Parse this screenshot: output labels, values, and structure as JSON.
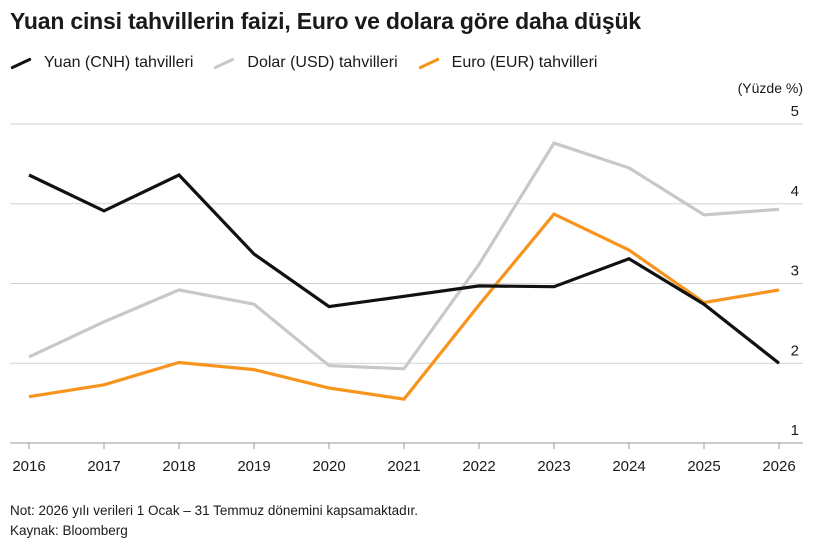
{
  "chart_data": {
    "type": "line",
    "title": "Yuan cinsi tahvillerin faizi, Euro ve dolara göre daha düşük",
    "y_unit_label": "(Yüzde %)",
    "x": [
      "2016",
      "2017",
      "2018",
      "2019",
      "2020",
      "2021",
      "2022",
      "2023",
      "2024",
      "2025",
      "2026"
    ],
    "ylim": [
      1,
      5
    ],
    "yticks": [
      "1",
      "2",
      "3",
      "4",
      "5"
    ],
    "grid": "horizontal",
    "legend_position": "top-left",
    "series": [
      {
        "name": "Yuan (CNH) tahvilleri",
        "color": "#111111",
        "values": [
          4.36,
          3.91,
          4.36,
          3.37,
          2.71,
          2.84,
          2.97,
          2.96,
          3.31,
          2.74,
          2.0
        ]
      },
      {
        "name": "Dolar (USD) tahvilleri",
        "color": "#c8c8c8",
        "values": [
          2.08,
          2.52,
          2.92,
          2.74,
          1.97,
          1.93,
          3.24,
          4.76,
          4.45,
          3.86,
          3.93
        ]
      },
      {
        "name": "Euro (EUR) tahvilleri",
        "color": "#f7941d",
        "values": [
          1.58,
          1.73,
          2.01,
          1.92,
          1.69,
          1.55,
          2.73,
          3.87,
          3.42,
          2.76,
          2.92
        ]
      }
    ]
  },
  "footer": {
    "note": "Not: 2026 yılı verileri 1 Ocak – 31 Temmuz dönemini kapsamaktadır.",
    "source": "Kaynak: Bloomberg"
  }
}
